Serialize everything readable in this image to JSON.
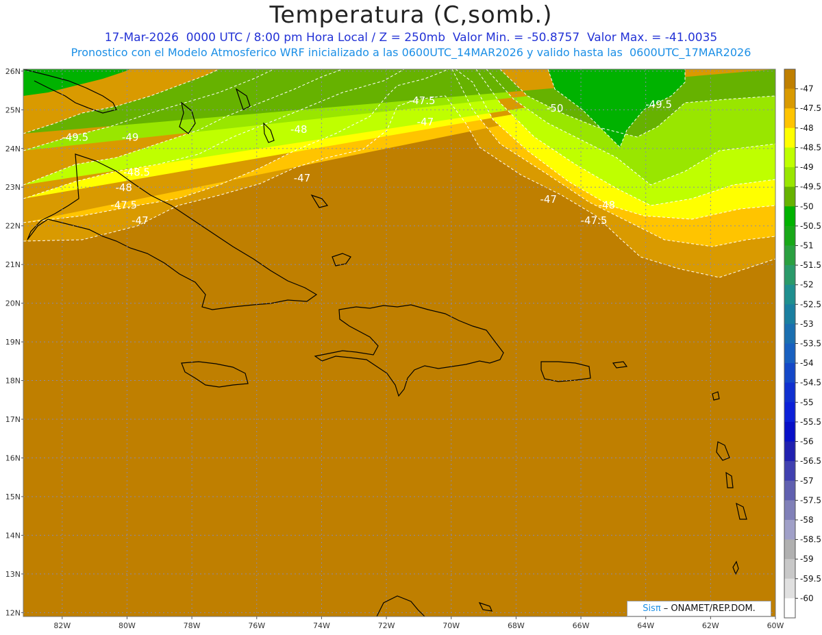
{
  "header": {
    "title": "Temperatura (C,somb.)",
    "subtitle_line1": "17-Mar-2026  0000 UTC / 8:00 pm Hora Local / Z = 250mb  Valor Min. = -50.8757  Valor Max. = -41.0035",
    "subtitle_line2": "Pronostico con el Modelo Atmosferico WRF inicializado a las 0600UTC_14MAR2026 y valido hasta las  0600UTC_17MAR2026"
  },
  "axes": {
    "lat_labels": [
      "26N",
      "25N",
      "24N",
      "23N",
      "22N",
      "21N",
      "20N",
      "19N",
      "18N",
      "17N",
      "16N",
      "15N",
      "14N",
      "13N",
      "12N"
    ],
    "lon_labels": [
      "82W",
      "80W",
      "78W",
      "76W",
      "74W",
      "72W",
      "70W",
      "68W",
      "66W",
      "64W",
      "62W",
      "60W"
    ]
  },
  "contour_labels": [
    {
      "text": "-47.5",
      "lon": -70.9,
      "lat": 25.15
    },
    {
      "text": "-47",
      "lon": -70.8,
      "lat": 24.6
    },
    {
      "text": "-48",
      "lon": -74.7,
      "lat": 24.4
    },
    {
      "text": "-47",
      "lon": -74.6,
      "lat": 23.15
    },
    {
      "text": "-50",
      "lon": -66.8,
      "lat": 24.95
    },
    {
      "text": "-49.5",
      "lon": -63.6,
      "lat": 25.05
    },
    {
      "text": "-49.5",
      "lon": -81.6,
      "lat": 24.2
    },
    {
      "text": "-49",
      "lon": -79.9,
      "lat": 24.2
    },
    {
      "text": "-48.5",
      "lon": -79.7,
      "lat": 23.3
    },
    {
      "text": "-48",
      "lon": -80.1,
      "lat": 22.9
    },
    {
      "text": "-47.5",
      "lon": -80.1,
      "lat": 22.45
    },
    {
      "text": "-47",
      "lon": -79.6,
      "lat": 22.05
    },
    {
      "text": "-47",
      "lon": -67.0,
      "lat": 22.6
    },
    {
      "text": "-48",
      "lon": -65.2,
      "lat": 22.45
    },
    {
      "text": "-47.5",
      "lon": -65.6,
      "lat": 22.05
    }
  ],
  "colorbar": {
    "labels": [
      "-47",
      "-47.5",
      "-48",
      "-48.5",
      "-49",
      "-49.5",
      "-50",
      "-50.5",
      "-51",
      "-51.5",
      "-52",
      "-52.5",
      "-53",
      "-53.5",
      "-54",
      "-54.5",
      "-55",
      "-55.5",
      "-56",
      "-56.5",
      "-57",
      "-57.5",
      "-58",
      "-58.5",
      "-59",
      "-59.5",
      "-60"
    ],
    "colors": [
      "#bf7f00",
      "#d99a00",
      "#ffc400",
      "#ffff00",
      "#bfff00",
      "#99e600",
      "#66b200",
      "#00b200",
      "#18a818",
      "#2aa040",
      "#2a9a6a",
      "#1f8f8f",
      "#1a7fa0",
      "#1a6fb0",
      "#1860c0",
      "#1448c8",
      "#1030d0",
      "#0c20d8",
      "#0810c8",
      "#2020b0",
      "#4040b0",
      "#6060b0",
      "#8080b8",
      "#a0a0c8",
      "#b0b0b0",
      "#c8c8c8",
      "#e0e0e0",
      "#ffffff"
    ]
  },
  "colors": {
    "brown": "#bf7f00",
    "orange": "#d99a00",
    "gold": "#ffc400",
    "yellow": "#ffff00",
    "lime": "#bfff00",
    "lightgreen": "#99e600",
    "olivegreen": "#66b200",
    "green": "#00b200"
  },
  "credit": {
    "sis": "Sisπ",
    "rest": " – ONAMET/REP.DOM."
  }
}
